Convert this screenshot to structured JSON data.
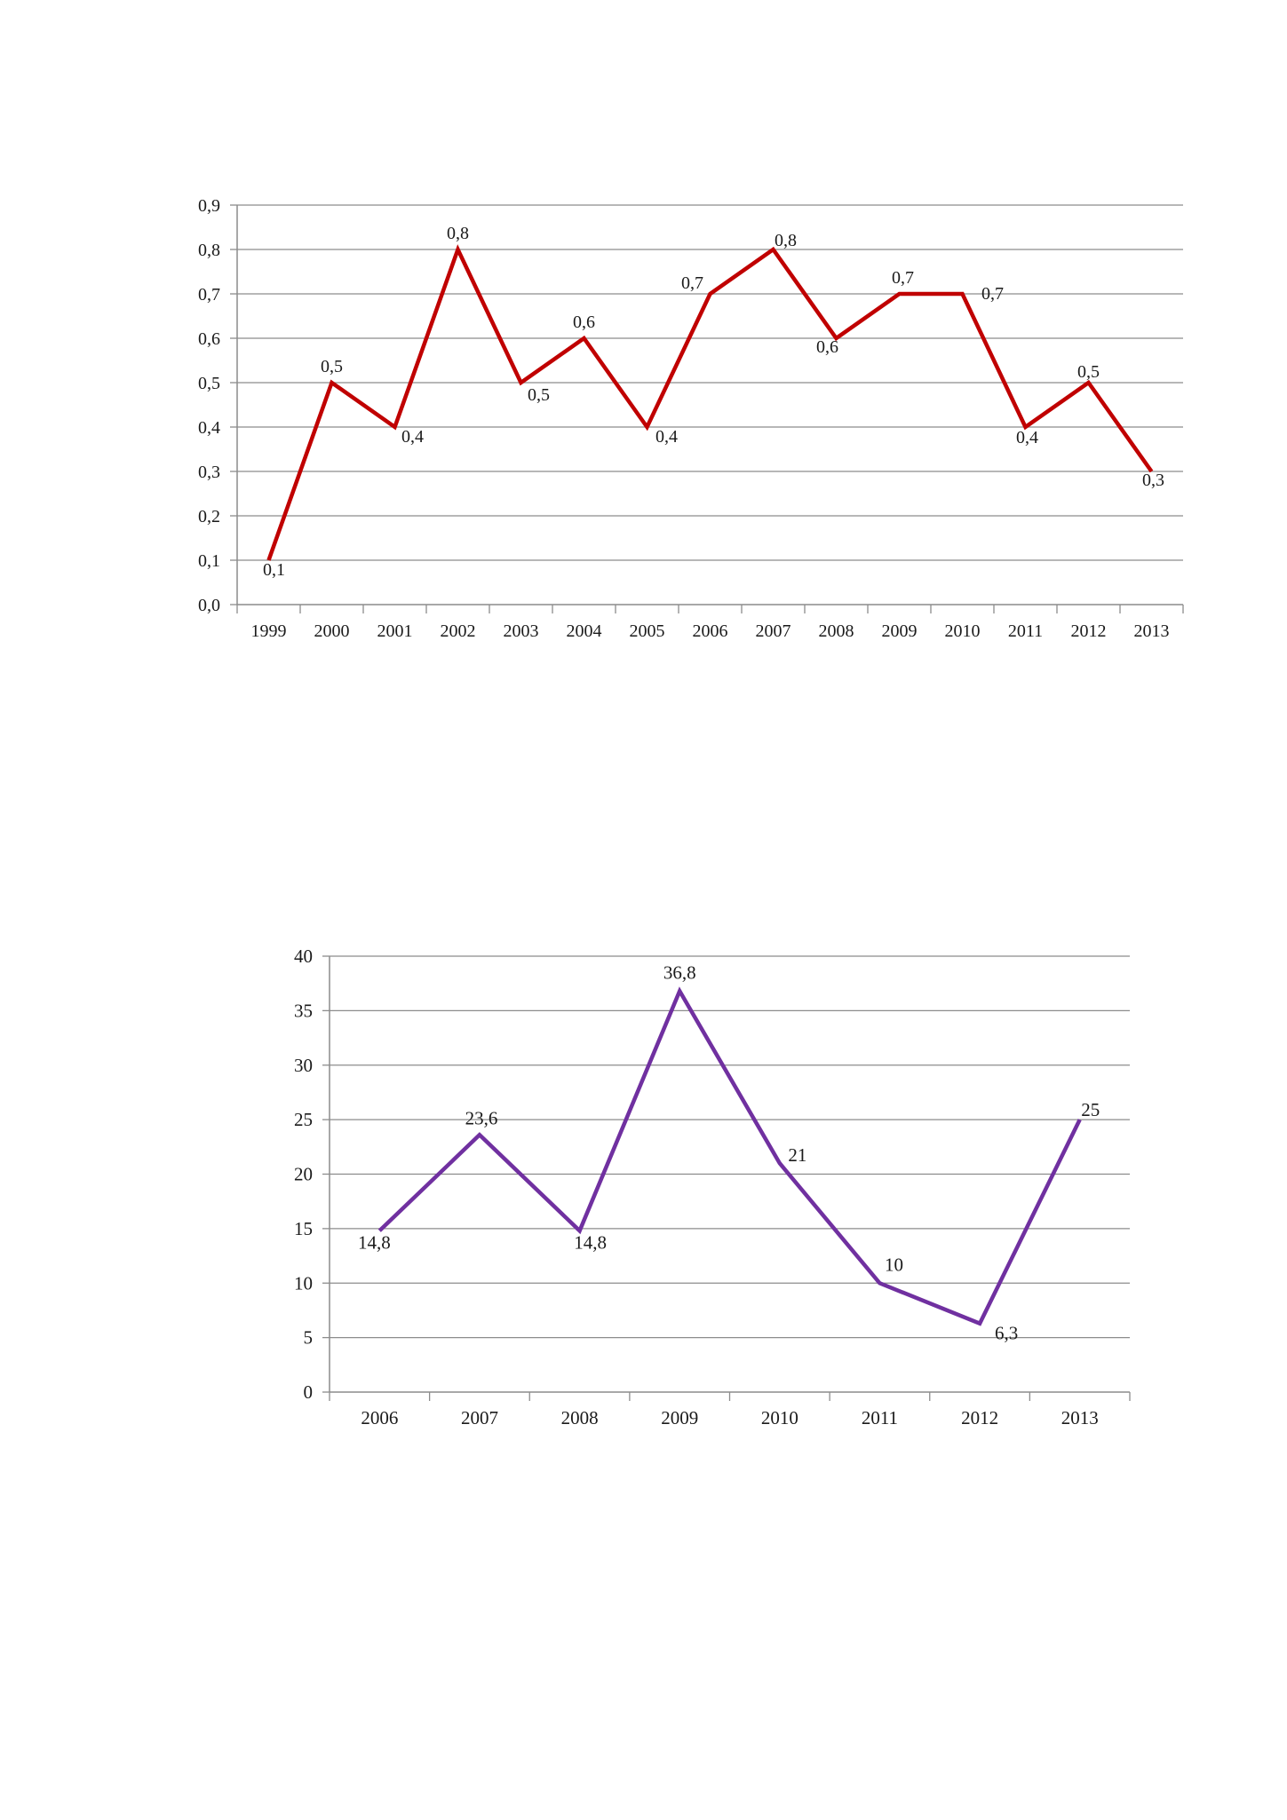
{
  "chart_data": [
    {
      "type": "line",
      "title": "",
      "xlabel": "",
      "ylabel": "",
      "x": [
        "1999",
        "2000",
        "2001",
        "2002",
        "2003",
        "2004",
        "2005",
        "2006",
        "2007",
        "2008",
        "2009",
        "2010",
        "2011",
        "2012",
        "2013"
      ],
      "series": [
        {
          "values": [
            0.1,
            0.5,
            0.4,
            0.8,
            0.5,
            0.6,
            0.4,
            0.7,
            0.8,
            0.6,
            0.7,
            0.7,
            0.4,
            0.5,
            0.3
          ],
          "labels": [
            "0,1",
            "0,5",
            "0,4",
            "0,8",
            "0,5",
            "0,6",
            "0,4",
            "0,7",
            "0,8",
            "0,6",
            "0,7",
            "0,7",
            "0,4",
            "0,5",
            "0,3"
          ],
          "color": "#c00000"
        }
      ],
      "ylim": [
        0,
        0.9
      ],
      "yticks": [
        "0,0",
        "0,1",
        "0,2",
        "0,3",
        "0,4",
        "0,5",
        "0,6",
        "0,7",
        "0,8",
        "0,9"
      ],
      "grid": true,
      "legend": "none"
    },
    {
      "type": "line",
      "title": "",
      "xlabel": "",
      "ylabel": "",
      "x": [
        "2006",
        "2007",
        "2008",
        "2009",
        "2010",
        "2011",
        "2012",
        "2013"
      ],
      "series": [
        {
          "values": [
            14.8,
            23.6,
            14.8,
            36.8,
            21,
            10,
            6.3,
            25
          ],
          "labels": [
            "14,8",
            "23,6",
            "14,8",
            "36,8",
            "21",
            "10",
            "6,3",
            "25"
          ],
          "color": "#7030a0"
        }
      ],
      "ylim": [
        0,
        40
      ],
      "yticks": [
        "0",
        "5",
        "10",
        "15",
        "20",
        "25",
        "30",
        "35",
        "40"
      ],
      "grid": true,
      "legend": "none"
    }
  ]
}
